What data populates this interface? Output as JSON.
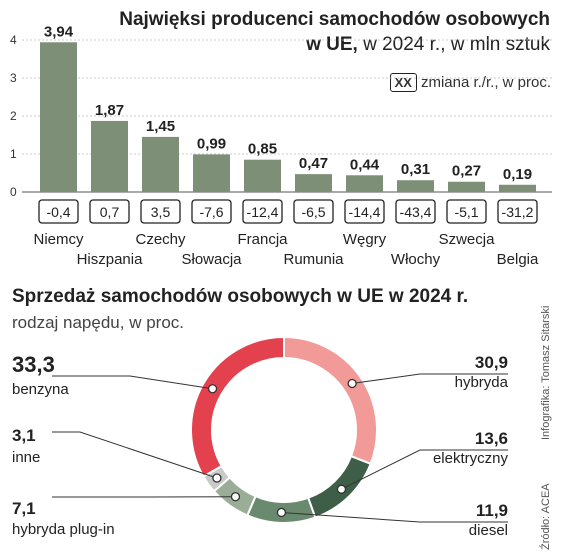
{
  "header": {
    "title_bold": "Najwięksi producenci samochodów osobowych",
    "title_line2_bold": "w UE,",
    "title_line2_rest": " w 2024 r., w mln sztuk",
    "legend_box": "XX",
    "legend_text": "zmiana r./r., w proc."
  },
  "credits": {
    "author": "Infografika: Tomasz Sitarski",
    "source": "Źródło: ACEA"
  },
  "chart_data": [
    {
      "type": "bar",
      "title": "Najwięksi producenci samochodów osobowych w UE, w 2024 r., w mln sztuk",
      "categories": [
        "Niemcy",
        "Hiszpania",
        "Czechy",
        "Słowacja",
        "Francja",
        "Rumunia",
        "Węgry",
        "Włochy",
        "Szwecja",
        "Belgia"
      ],
      "values": [
        3.94,
        1.87,
        1.45,
        0.99,
        0.85,
        0.47,
        0.44,
        0.31,
        0.27,
        0.19
      ],
      "value_labels": [
        "3,94",
        "1,87",
        "1,45",
        "0,99",
        "0,85",
        "0,47",
        "0,44",
        "0,31",
        "0,27",
        "0,19"
      ],
      "change_labels": [
        "-0,4",
        "0,7",
        "3,5",
        "-7,6",
        "-12,4",
        "-6,5",
        "-14,4",
        "-43,4",
        "-5,1",
        "-31,2"
      ],
      "yticks": [
        "0",
        "1",
        "2",
        "3",
        "4"
      ],
      "ylim": [
        0,
        4
      ],
      "grid": true,
      "bar_color": "#7d8f76"
    },
    {
      "type": "pie",
      "title": "Sprzedaż samochodów osobowych w UE w 2024 r.",
      "subtitle": "rodzaj napędu, w proc.",
      "slices": [
        {
          "label": "hybryda",
          "value": 30.9,
          "value_label": "30,9",
          "color": "#f29a98"
        },
        {
          "label": "elektryczny",
          "value": 13.6,
          "value_label": "13,6",
          "color": "#3e5e47"
        },
        {
          "label": "diesel",
          "value": 11.9,
          "value_label": "11,9",
          "color": "#6a8a6f"
        },
        {
          "label": "hybryda plug-in",
          "value": 7.1,
          "value_label": "7,1",
          "color": "#9aae97"
        },
        {
          "label": "inne",
          "value": 3.1,
          "value_label": "3,1",
          "color": "#c9c9c9"
        },
        {
          "label": "benzyna",
          "value": 33.3,
          "value_label": "33,3",
          "color": "#e2414d"
        }
      ]
    }
  ]
}
